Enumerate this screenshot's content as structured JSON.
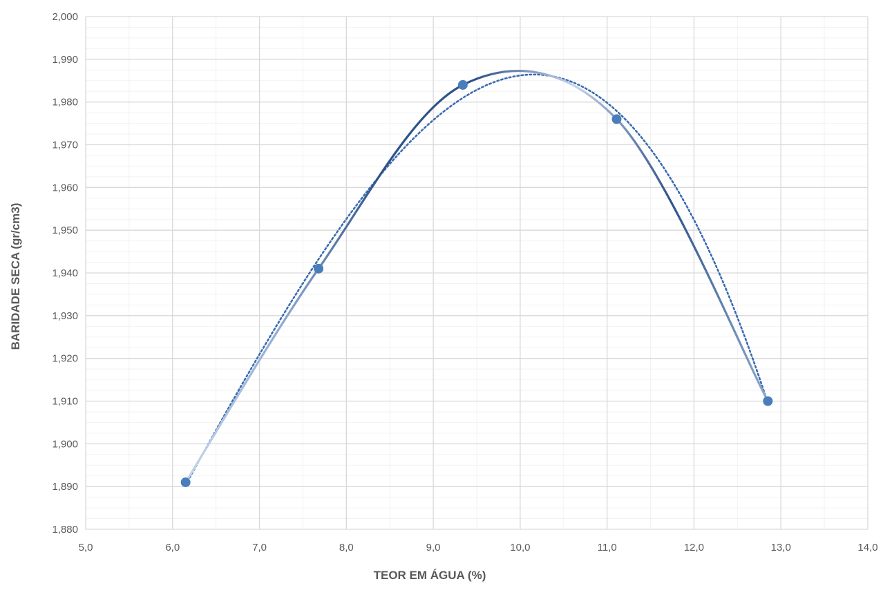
{
  "chart_data": {
    "type": "scatter",
    "title": "",
    "xlabel": "TEOR EM ÁGUA (%)",
    "ylabel": "BARIDADE SECA (gr/cm3)",
    "xlim": [
      5.0,
      14.0
    ],
    "ylim": [
      1.88,
      2.0
    ],
    "x_major_step": 1.0,
    "x_minor_step": 0.5,
    "y_major_step": 0.01,
    "y_minor_step": 0.0025,
    "x_tick_labels": [
      "5,0",
      "6,0",
      "7,0",
      "8,0",
      "9,0",
      "10,0",
      "11,0",
      "12,0",
      "13,0",
      "14,0"
    ],
    "y_tick_labels": [
      "1,880",
      "1,890",
      "1,900",
      "1,910",
      "1,920",
      "1,930",
      "1,940",
      "1,950",
      "1,960",
      "1,970",
      "1,980",
      "1,990",
      "2,000"
    ],
    "grid": true,
    "legend": "none",
    "series": [
      {
        "kind": "points-smoothed",
        "x": [
          6.15,
          7.68,
          9.34,
          11.11,
          12.85
        ],
        "y": [
          1.891,
          1.941,
          1.984,
          1.976,
          1.91
        ],
        "marker_color": "#4a7ebb",
        "line_gradient": [
          "#c8d6ea",
          "#8eabd0",
          "#2f5289",
          "#2f5289",
          "#c8d6ea",
          "#2f5289",
          "#8eabd0"
        ]
      },
      {
        "kind": "trendline-polynomial",
        "degree": 3,
        "x_range": [
          6.15,
          12.85
        ],
        "points_x": [
          6.15,
          7.68,
          9.34,
          11.11,
          12.85
        ],
        "points_y": [
          1.891,
          1.941,
          1.984,
          1.976,
          1.91
        ],
        "color": "#3c6bb0",
        "dash": "dotted"
      }
    ]
  },
  "colors": {
    "grid_major": "#d9d9d9",
    "grid_minor": "#f2f2f2",
    "text": "#595959"
  }
}
